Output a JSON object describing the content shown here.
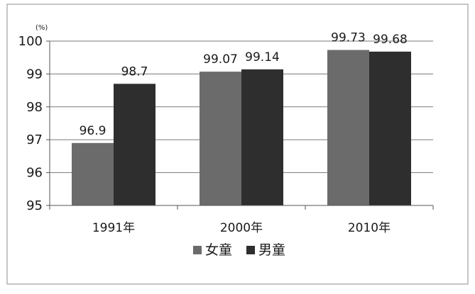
{
  "chart_data": {
    "type": "bar",
    "y_unit_label": "(%)",
    "ylim": [
      95,
      100
    ],
    "yticks": [
      "95",
      "96",
      "97",
      "98",
      "99",
      "100"
    ],
    "categories": [
      "1991年",
      "2000年",
      "2010年"
    ],
    "series": [
      {
        "name": "女童",
        "values": [
          96.9,
          99.07,
          99.73
        ],
        "labels": [
          "96.9",
          "99.07",
          "99.73"
        ],
        "color": "#6b6b6b"
      },
      {
        "name": "男童",
        "values": [
          98.7,
          99.14,
          99.68
        ],
        "labels": [
          "98.7",
          "99.14",
          "99.68"
        ],
        "color": "#2e2e2e"
      }
    ],
    "grid": true,
    "legend": "bottom"
  }
}
